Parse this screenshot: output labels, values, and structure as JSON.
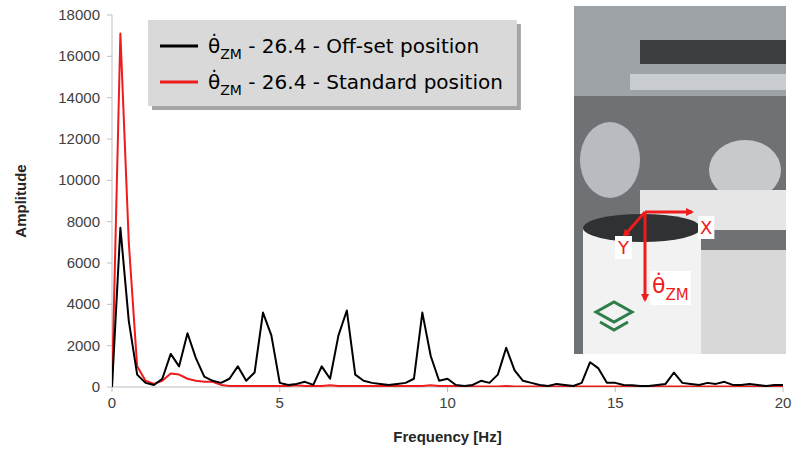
{
  "chart_data": {
    "type": "line",
    "x_label": "Frequency [Hz]",
    "y_label": "Amplitude",
    "x": [
      0,
      0.25,
      0.5,
      0.75,
      1,
      1.25,
      1.5,
      1.75,
      2,
      2.25,
      2.5,
      2.75,
      3,
      3.25,
      3.5,
      3.75,
      4,
      4.25,
      4.5,
      4.75,
      5,
      5.25,
      5.5,
      5.75,
      6,
      6.25,
      6.5,
      6.75,
      7,
      7.25,
      7.5,
      7.75,
      8,
      8.25,
      8.5,
      8.75,
      9,
      9.25,
      9.5,
      9.75,
      10,
      10.25,
      10.5,
      10.75,
      11,
      11.25,
      11.5,
      11.75,
      12,
      12.25,
      12.5,
      12.75,
      13,
      13.25,
      13.5,
      13.75,
      14,
      14.25,
      14.5,
      14.75,
      15,
      15.25,
      15.5,
      15.75,
      16,
      16.25,
      16.5,
      16.75,
      17,
      17.25,
      17.5,
      17.75,
      18,
      18.25,
      18.5,
      18.75,
      19,
      19.25,
      19.5,
      19.75,
      20
    ],
    "series": [
      {
        "name": "θ̇ZM - 26.4 - Off-set position",
        "color": "#000000",
        "values": [
          0,
          7700,
          3200,
          600,
          200,
          100,
          400,
          1600,
          1000,
          2600,
          1400,
          500,
          300,
          200,
          400,
          1000,
          300,
          700,
          3600,
          2500,
          200,
          100,
          150,
          250,
          100,
          1000,
          400,
          2500,
          3700,
          600,
          300,
          200,
          150,
          100,
          150,
          200,
          400,
          3600,
          1500,
          300,
          400,
          100,
          50,
          100,
          300,
          200,
          600,
          1900,
          800,
          300,
          200,
          100,
          50,
          150,
          100,
          50,
          200,
          1200,
          900,
          200,
          200,
          100,
          80,
          50,
          50,
          100,
          150,
          700,
          200,
          150,
          100,
          200,
          150,
          250,
          100,
          100,
          150,
          100,
          50,
          100,
          100
        ]
      },
      {
        "name": "θ̇ZM - 26.4 - Standard position",
        "color": "#ee1c1c",
        "values": [
          0,
          17100,
          7000,
          1000,
          300,
          150,
          300,
          650,
          600,
          400,
          300,
          250,
          250,
          100,
          50,
          50,
          50,
          50,
          50,
          50,
          50,
          50,
          80,
          50,
          50,
          50,
          80,
          50,
          50,
          50,
          50,
          50,
          50,
          50,
          50,
          50,
          50,
          50,
          80,
          50,
          50,
          50,
          30,
          30,
          30,
          30,
          30,
          50,
          30,
          30,
          30,
          30,
          30,
          30,
          30,
          30,
          30,
          30,
          30,
          30,
          30,
          30,
          30,
          30,
          30,
          30,
          30,
          30,
          30,
          30,
          30,
          30,
          30,
          30,
          30,
          30,
          30,
          30,
          30,
          30,
          30
        ]
      }
    ],
    "xlim": [
      0,
      20
    ],
    "xticks": [
      0,
      5,
      10,
      15,
      20
    ],
    "ylim": [
      0,
      18000
    ],
    "yticks": [
      0,
      2000,
      4000,
      6000,
      8000,
      10000,
      12000,
      14000,
      16000,
      18000
    ],
    "grid": false,
    "legend": "top-left",
    "annotations": [
      "Y",
      "X",
      "θ̇ZM"
    ]
  }
}
